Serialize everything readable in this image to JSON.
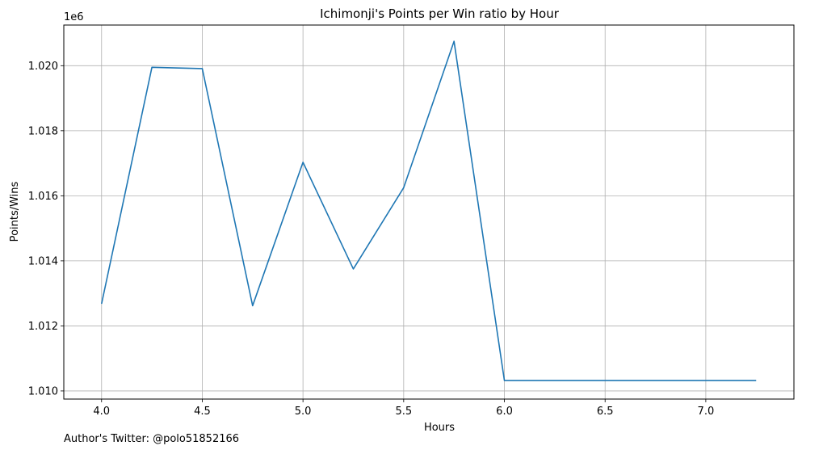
{
  "chart_data": {
    "type": "line",
    "title": "Ichimonji's Points per Win ratio by Hour",
    "xlabel": "Hours",
    "ylabel": "Points/Wins",
    "y_offset_label": "1e6",
    "xlim": [
      3.8125,
      7.4375
    ],
    "ylim": [
      1.00975,
      1.02125
    ],
    "x_ticks": [
      4.0,
      4.5,
      5.0,
      5.5,
      6.0,
      6.5,
      7.0
    ],
    "x_tick_labels": [
      "4.0",
      "4.5",
      "5.0",
      "5.5",
      "6.0",
      "6.5",
      "7.0"
    ],
    "y_ticks": [
      1.01,
      1.012,
      1.014,
      1.016,
      1.018,
      1.02
    ],
    "y_tick_labels": [
      "1.010",
      "1.012",
      "1.014",
      "1.016",
      "1.018",
      "1.020"
    ],
    "grid": true,
    "line_color": "#1f77b4",
    "series": [
      {
        "x": [
          4.0,
          4.25,
          4.5,
          4.75,
          5.0,
          5.25,
          5.5,
          5.75,
          6.0,
          6.25,
          6.5,
          6.75,
          7.0,
          7.25
        ],
        "y": [
          1.01268,
          1.01995,
          1.01991,
          1.01262,
          1.01703,
          1.01375,
          1.01625,
          1.02075,
          1.01032,
          1.01032,
          1.01032,
          1.01032,
          1.01032,
          1.01032
        ]
      }
    ]
  },
  "footer": {
    "text": "Author's Twitter: @polo51852166"
  }
}
